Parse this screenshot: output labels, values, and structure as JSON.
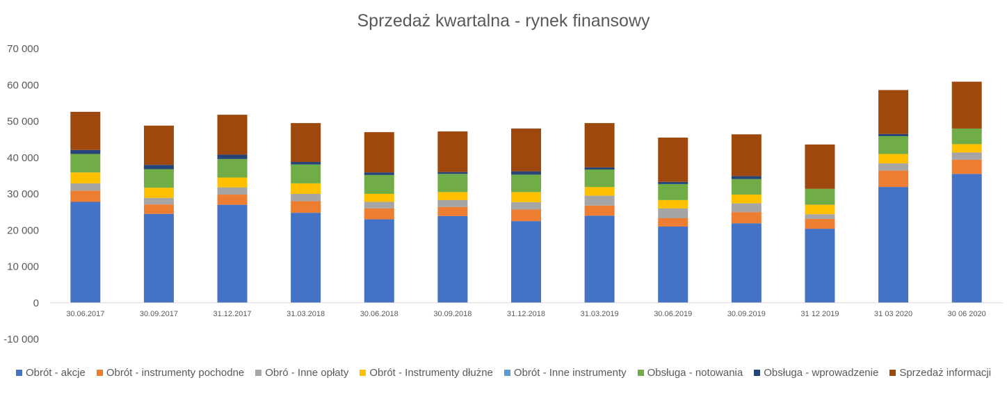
{
  "chart_data": {
    "type": "bar",
    "stacked": true,
    "title": "Sprzedaż kwartalna - rynek finansowy",
    "categories": [
      "30.06.2017",
      "30.09.2017",
      "31.12.2017",
      "31.03.2018",
      "30.06.2018",
      "30.09.2018",
      "31.12.2018",
      "31.03.2019",
      "30.06.2019",
      "30.09.2019",
      "31 12 2019",
      "31 03 2020",
      "30 06 2020"
    ],
    "ylim": [
      -10000,
      70000
    ],
    "yticks": [
      -10000,
      0,
      10000,
      20000,
      30000,
      40000,
      50000,
      60000,
      70000
    ],
    "ytick_labels": [
      "-10 000",
      "0",
      "10 000",
      "20 000",
      "30 000",
      "40 000",
      "50 000",
      "60 000",
      "70 000"
    ],
    "grid": false,
    "legend_position": "bottom",
    "series": [
      {
        "name": "Obrót - akcje",
        "color": "#4472C4",
        "values": [
          27800,
          24500,
          27000,
          24800,
          23000,
          23900,
          22500,
          24000,
          21000,
          21900,
          20400,
          31900,
          35500
        ]
      },
      {
        "name": "Obrót - instrumenty pochodne",
        "color": "#ED7D31",
        "values": [
          3100,
          2600,
          2800,
          3200,
          3000,
          2500,
          3200,
          2800,
          2300,
          3100,
          2700,
          4500,
          3900
        ]
      },
      {
        "name": "Obró - Inne opłaty",
        "color": "#A5A5A5",
        "values": [
          2000,
          1800,
          2000,
          2000,
          1800,
          1900,
          2000,
          2700,
          2700,
          2400,
          1300,
          2000,
          2000
        ]
      },
      {
        "name": "Obrót - Instrumenty dłużne",
        "color": "#FFC000",
        "values": [
          3000,
          2800,
          2700,
          2900,
          2200,
          2200,
          2800,
          2400,
          2300,
          2400,
          2600,
          2600,
          2300
        ]
      },
      {
        "name": "Obrót - Inne instrumenty",
        "color": "#5B9BD5",
        "values": [
          0,
          0,
          0,
          0,
          0,
          0,
          0,
          0,
          0,
          0,
          0,
          0,
          0
        ]
      },
      {
        "name": "Obsługa - notowania",
        "color": "#70AD47",
        "values": [
          5100,
          5100,
          5100,
          5200,
          5200,
          5000,
          4800,
          4800,
          4400,
          4300,
          4400,
          4900,
          4300
        ]
      },
      {
        "name": "Obsługa - wprowadzenie",
        "color": "#264478",
        "values": [
          1100,
          1200,
          1200,
          700,
          700,
          500,
          900,
          600,
          600,
          800,
          0,
          600,
          0
        ]
      },
      {
        "name": "Sprzedaż informacji",
        "color": "#9E480E",
        "values": [
          10500,
          10800,
          11000,
          10700,
          11100,
          11200,
          11800,
          12200,
          12200,
          11500,
          12200,
          12100,
          12900
        ]
      }
    ]
  }
}
